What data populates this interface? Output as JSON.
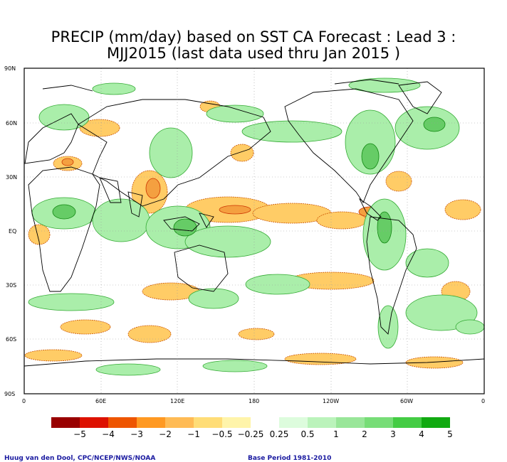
{
  "title_line1": "PRECIP (mm/day) based on SST CA Forecast : Lead 3 :",
  "title_line2": "MJJ2015 (last data used thru Jan 2015 )",
  "lat_labels": [
    "90N",
    "60N",
    "30N",
    "EQ",
    "30S",
    "60S",
    "90S"
  ],
  "lon_labels": [
    "0",
    "60E",
    "120E",
    "180",
    "120W",
    "60W",
    "0"
  ],
  "colorbar": {
    "colors": [
      "#990000",
      "#dd1100",
      "#ee5500",
      "#ff9922",
      "#ffbb55",
      "#ffdd77",
      "#fff4aa",
      "#ffffff",
      "#ddfcdd",
      "#bbf3bb",
      "#99e699",
      "#77dd77",
      "#44cc44",
      "#11aa11"
    ],
    "labels": [
      "−5",
      "−4",
      "−3",
      "−2",
      "−1",
      "−0.5",
      "−0.25",
      "0.25",
      "0.5",
      "1",
      "2",
      "3",
      "4",
      "5"
    ]
  },
  "credit_left": "Huug van den Dool, CPC/NCEP/NWS/NOAA",
  "credit_right": "Base Period 1981-2010",
  "map_colors": {
    "dry": "#ffcc66",
    "dry_strong": "#f4a040",
    "wet": "#99e699",
    "wet_strong": "#55cc55",
    "coast": "#000000",
    "grid": "#999999"
  }
}
